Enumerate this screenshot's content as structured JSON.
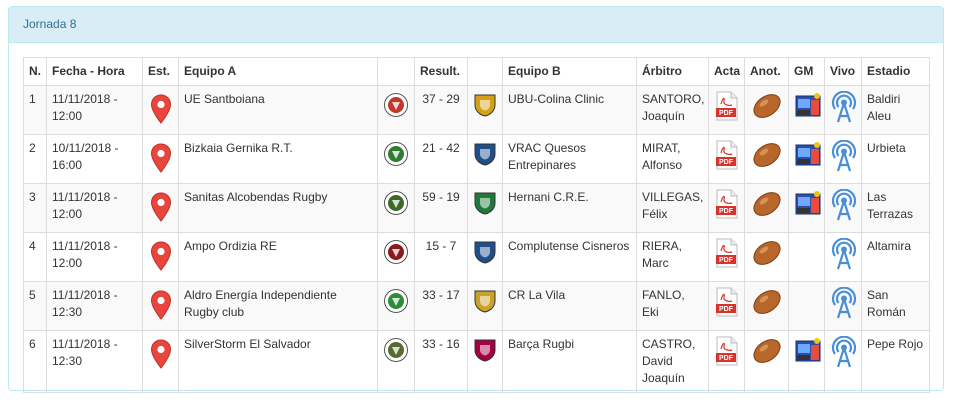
{
  "panel": {
    "title": "Jornada 8"
  },
  "columns": {
    "n": "N.",
    "fecha": "Fecha - Hora",
    "est": "Est.",
    "equipo_a": "Equipo A",
    "result": "Result.",
    "equipo_b": "Equipo B",
    "arbitro": "Árbitro",
    "acta": "Acta",
    "anot": "Anot.",
    "gm": "GM",
    "vivo": "Vivo",
    "estadio": "Estadio"
  },
  "icons": {
    "pin": "map-pin-icon",
    "pdf": "pdf-icon",
    "ball": "rugby-ball-icon",
    "gm": "video-icon",
    "vivo": "live-broadcast-icon"
  },
  "pdf_label": "PDF",
  "colors": {
    "heading_bg": "#d9edf7",
    "heading_text": "#31708f",
    "pin": "#e8453c",
    "pdf": "#d9342b",
    "ball": "#b8662a"
  },
  "rows": [
    {
      "n": "1",
      "fecha": "11/11/2018 - 12:00",
      "equipo_a": "UE Santboiana",
      "result": "37 - 29",
      "equipo_b": "UBU-Colina Clinic",
      "arbitro": "SANTORO, Joaquín",
      "gm": true,
      "estadio": "Baldiri Aleu",
      "logo_a": "#c0392b",
      "logo_b": "#d4a017"
    },
    {
      "n": "2",
      "fecha": "10/11/2018 - 16:00",
      "equipo_a": "Bizkaia Gernika R.T.",
      "result": "21 - 42",
      "equipo_b": "VRAC Quesos Entrepinares",
      "arbitro": "MIRAT, Alfonso",
      "gm": true,
      "estadio": "Urbieta",
      "logo_a": "#2e7d32",
      "logo_b": "#1f4e8c"
    },
    {
      "n": "3",
      "fecha": "11/11/2018 - 12:00",
      "equipo_a": "Sanitas Alcobendas Rugby",
      "result": "59 - 19",
      "equipo_b": "Hernani C.R.E.",
      "arbitro": "VILLEGAS, Félix",
      "gm": true,
      "estadio": "Las Terrazas",
      "logo_a": "#3a6b2a",
      "logo_b": "#1e7a3a"
    },
    {
      "n": "4",
      "fecha": "11/11/2018 - 12:00",
      "equipo_a": "Ampo Ordizia RE",
      "result": "15 - 7",
      "equipo_b": "Complutense Cisneros",
      "arbitro": "RIERA, Marc",
      "gm": false,
      "estadio": "Altamira",
      "logo_a": "#8b1a1a",
      "logo_b": "#1f4e8c"
    },
    {
      "n": "5",
      "fecha": "11/11/2018 - 12:30",
      "equipo_a": "Aldro Energía Independiente Rugby club",
      "result": "33 - 17",
      "equipo_b": "CR La Vila",
      "arbitro": "FANLO, Eki",
      "gm": false,
      "estadio": "San Román",
      "logo_a": "#2e8b3a",
      "logo_b": "#c9a227"
    },
    {
      "n": "6",
      "fecha": "11/11/2018 - 12:30",
      "equipo_a": "SilverStorm El Salvador",
      "result": "33 - 16",
      "equipo_b": "Barça Rugbi",
      "arbitro": "CASTRO, David Joaquín",
      "gm": true,
      "estadio": "Pepe Rojo",
      "logo_a": "#556b2f",
      "logo_b": "#a50044"
    }
  ]
}
